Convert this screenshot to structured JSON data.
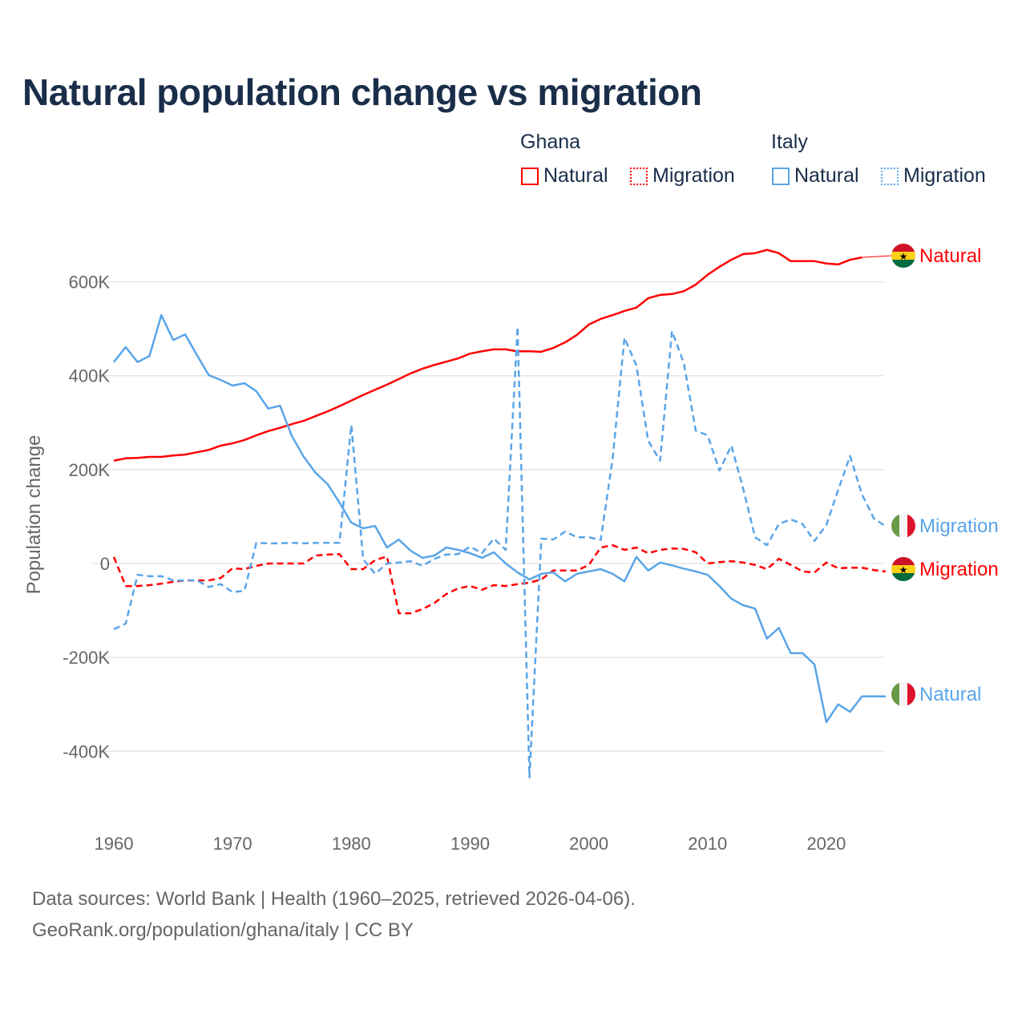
{
  "title": "Natural population change vs migration",
  "legend": {
    "groups": [
      {
        "name": "Ghana",
        "items": [
          {
            "label": "Natural",
            "style": "solid"
          },
          {
            "label": "Migration",
            "style": "dotted"
          }
        ],
        "color": "#ff0000"
      },
      {
        "name": "Italy",
        "items": [
          {
            "label": "Natural",
            "style": "solid"
          },
          {
            "label": "Migration",
            "style": "dotted"
          }
        ],
        "color": "#5aa5e8"
      }
    ]
  },
  "footer": {
    "line1": "Data sources: World Bank | Health (1960–2025, retrieved 2026-04-06).",
    "line2": "GeoRank.org/population/ghana/italy | CC BY"
  },
  "chart_data": {
    "type": "line",
    "title": "Natural population change vs migration",
    "xlabel": "",
    "ylabel": "Population change",
    "xlim": [
      1960,
      2025
    ],
    "ylim": [
      -400000,
      700000
    ],
    "x_ticks": [
      1960,
      1970,
      1980,
      1990,
      2000,
      2010,
      2020
    ],
    "x_tick_labels": [
      "1960",
      "1970",
      "1980",
      "1990",
      "2000",
      "2010",
      "2020"
    ],
    "y_ticks": [
      600000,
      400000,
      200000,
      0,
      -200000,
      -400000
    ],
    "y_tick_labels": [
      "600K",
      "400K",
      "200K",
      "0",
      "-200K",
      "-400K"
    ],
    "grid": true,
    "legend_position": "top-right",
    "series": [
      {
        "name": "Ghana Natural",
        "end_label": "Natural",
        "country": "ghana",
        "color": "#ff0000",
        "dash": false,
        "start": 1960,
        "values_k": [
          219,
          224,
          225,
          227,
          227,
          230,
          232,
          237,
          242,
          251,
          256,
          263,
          273,
          282,
          289,
          297,
          304,
          314,
          324,
          335,
          347,
          359,
          370,
          381,
          393,
          405,
          415,
          423,
          430,
          437,
          447,
          452,
          456,
          456,
          452,
          452,
          451,
          459,
          471,
          487,
          509,
          521,
          529,
          538,
          545,
          565,
          572,
          574,
          580,
          594,
          615,
          632,
          647,
          659,
          661,
          668,
          661,
          644,
          644,
          644,
          639,
          637,
          647,
          652
        ]
      },
      {
        "name": "Ghana Migration",
        "end_label": "Migration",
        "country": "ghana",
        "color": "#ff0000",
        "dash": true,
        "start": 1960,
        "values_k": [
          14,
          -48,
          -48,
          -46,
          -43,
          -39,
          -36,
          -36,
          -36,
          -31,
          -10,
          -12,
          -5,
          0,
          0,
          0,
          0,
          17,
          19,
          20,
          -12,
          -12,
          7,
          15,
          -106,
          -106,
          -97,
          -84,
          -65,
          -53,
          -48,
          -56,
          -46,
          -48,
          -44,
          -41,
          -34,
          -15,
          -15,
          -15,
          -3,
          34,
          39,
          29,
          34,
          22,
          29,
          32,
          31,
          24,
          0,
          3,
          5,
          2,
          -3,
          -12,
          10,
          -3,
          -17,
          -19,
          2,
          -10,
          -9,
          -9,
          -14,
          -17
        ]
      },
      {
        "name": "Italy Natural",
        "end_label": "Natural",
        "country": "italy",
        "color": "#5aa5e8",
        "dash": false,
        "start": 1960,
        "values_k": [
          429,
          461,
          429,
          442,
          529,
          476,
          488,
          444,
          401,
          391,
          379,
          384,
          367,
          330,
          336,
          271,
          227,
          193,
          169,
          130,
          87,
          75,
          80,
          34,
          51,
          27,
          12,
          17,
          34,
          29,
          22,
          12,
          24,
          0,
          -19,
          -34,
          -22,
          -19,
          -38,
          -22,
          -17,
          -12,
          -22,
          -38,
          14,
          -15,
          2,
          -4,
          -11,
          -17,
          -24,
          -48,
          -75,
          -89,
          -96,
          -160,
          -137,
          -191,
          -191,
          -215,
          -338,
          -300,
          -316,
          -283,
          -283,
          -283
        ]
      },
      {
        "name": "Italy Migration",
        "end_label": "Migration",
        "country": "italy",
        "color": "#5aa5e8",
        "dash": true,
        "start": 1960,
        "values_k": [
          -140,
          -128,
          -24,
          -27,
          -27,
          -36,
          -36,
          -36,
          -50,
          -44,
          -61,
          -58,
          44,
          43,
          43,
          44,
          43,
          44,
          44,
          44,
          295,
          9,
          -22,
          0,
          2,
          5,
          -5,
          10,
          19,
          20,
          36,
          22,
          53,
          29,
          504,
          -456,
          53,
          51,
          68,
          56,
          56,
          50,
          222,
          481,
          422,
          261,
          219,
          495,
          427,
          283,
          273,
          198,
          251,
          159,
          56,
          39,
          84,
          94,
          84,
          48,
          82,
          157,
          229,
          147,
          96,
          79
        ]
      }
    ]
  }
}
